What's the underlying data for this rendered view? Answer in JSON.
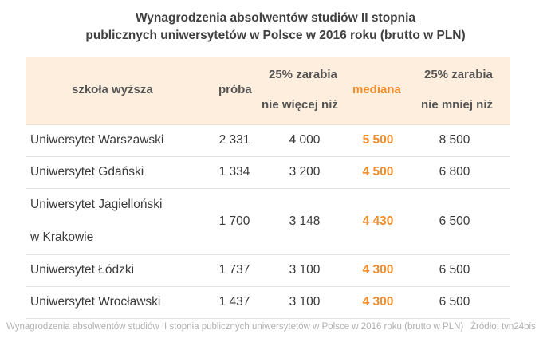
{
  "title_line1": "Wynagrodzenia absolwentów studiów II stopnia",
  "title_line2": "publicznych uniwersytetów w Polsce w 2016 roku (brutto w PLN)",
  "headers": {
    "school": "szkoła wyższa",
    "sample": "próba",
    "p25_line1": "25% zarabia",
    "p25_line2": "nie więcej niż",
    "median": "mediana",
    "p75_line1": "25% zarabia",
    "p75_line2": "nie mniej niż"
  },
  "rows": [
    {
      "name_line1": "Uniwersytet Warszawski",
      "name_line2": "",
      "sample": "2 331",
      "p25": "4 000",
      "median": "5 500",
      "p75": "8 500"
    },
    {
      "name_line1": "Uniwersytet Gdański",
      "name_line2": "",
      "sample": "1 334",
      "p25": "3 200",
      "median": "4 500",
      "p75": "6 800"
    },
    {
      "name_line1": "Uniwersytet Jagielloński",
      "name_line2": "w Krakowie",
      "sample": "1 700",
      "p25": "3 148",
      "median": "4 430",
      "p75": "6 500"
    },
    {
      "name_line1": "Uniwersytet Łódzki",
      "name_line2": "",
      "sample": "1 737",
      "p25": "3 100",
      "median": "4 300",
      "p75": "6 500"
    },
    {
      "name_line1": "Uniwersytet Wrocławski",
      "name_line2": "",
      "sample": "1 437",
      "p25": "3 100",
      "median": "4 300",
      "p75": "6 500"
    }
  ],
  "footer_caption": "Wynagrodzenia absolwentów studiów II stopnia publicznych uniwersytetów w Polsce w 2016 roku (brutto w PLN)",
  "footer_source": "Źródło: tvn24bis",
  "colors": {
    "accent": "#f28c28",
    "header_bg": "#fdeedd"
  },
  "chart_data": {
    "type": "table",
    "title": "Wynagrodzenia absolwentów studiów II stopnia publicznych uniwersytetów w Polsce w 2016 roku (brutto w PLN)",
    "columns": [
      "szkoła wyższa",
      "próba",
      "25% zarabia nie więcej niż",
      "mediana",
      "25% zarabia nie mniej niż"
    ],
    "categories": [
      "Uniwersytet Warszawski",
      "Uniwersytet Gdański",
      "Uniwersytet Jagielloński w Krakowie",
      "Uniwersytet Łódzki",
      "Uniwersytet Wrocławski"
    ],
    "series": [
      {
        "name": "próba",
        "values": [
          2331,
          1334,
          1700,
          1737,
          1437
        ]
      },
      {
        "name": "25% zarabia nie więcej niż",
        "values": [
          4000,
          3200,
          3148,
          3100,
          3100
        ]
      },
      {
        "name": "mediana",
        "values": [
          5500,
          4500,
          4430,
          4300,
          4300
        ]
      },
      {
        "name": "25% zarabia nie mniej niż",
        "values": [
          8500,
          6800,
          6500,
          6500,
          6500
        ]
      }
    ]
  }
}
